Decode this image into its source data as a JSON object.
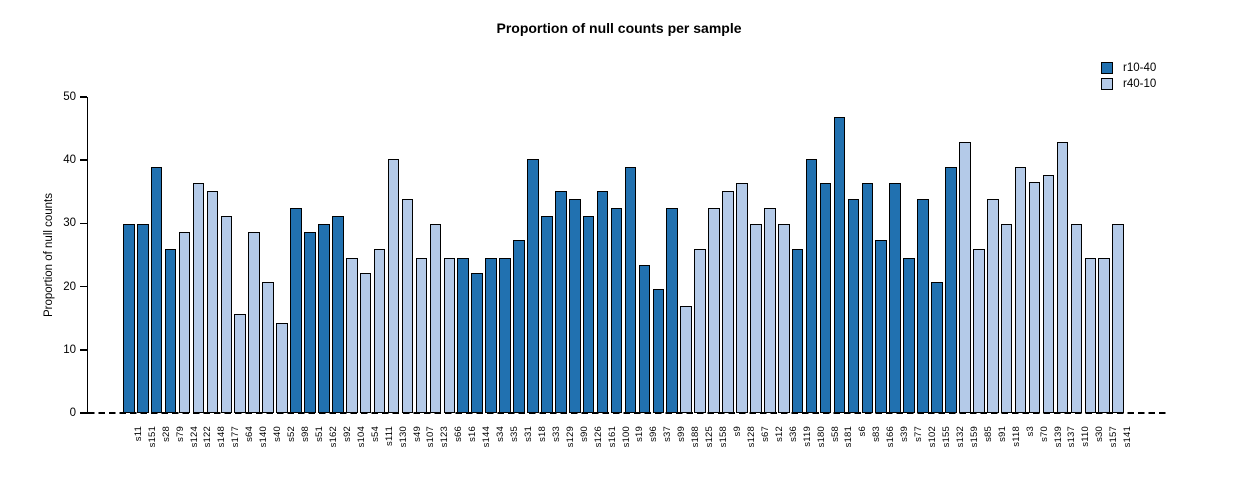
{
  "title": "Proportion of null counts per sample",
  "chart_data": {
    "type": "bar",
    "title": "Proportion of null counts per sample",
    "xlabel": "",
    "ylabel": "Proportion of null counts",
    "ylim": [
      0,
      50
    ],
    "yticks": [
      0,
      10,
      20,
      30,
      40,
      50
    ],
    "grid": false,
    "legend_position": "top-right",
    "baseline_style": "dashed-zero-line",
    "bar_border_color": "#000000",
    "series": [
      {
        "name": "r10-40",
        "color": "#2171b0"
      },
      {
        "name": "r40-10",
        "color": "#b4cae8"
      }
    ],
    "bars": [
      {
        "label": "s11",
        "value": 29.9,
        "series": "r10-40"
      },
      {
        "label": "s151",
        "value": 29.9,
        "series": "r10-40"
      },
      {
        "label": "s28",
        "value": 39.0,
        "series": "r10-40"
      },
      {
        "label": "s79",
        "value": 26.0,
        "series": "r10-40"
      },
      {
        "label": "s124",
        "value": 28.6,
        "series": "r40-10"
      },
      {
        "label": "s122",
        "value": 36.4,
        "series": "r40-10"
      },
      {
        "label": "s148",
        "value": 35.1,
        "series": "r40-10"
      },
      {
        "label": "s177",
        "value": 31.2,
        "series": "r40-10"
      },
      {
        "label": "s64",
        "value": 15.6,
        "series": "r40-10"
      },
      {
        "label": "s140",
        "value": 28.6,
        "series": "r40-10"
      },
      {
        "label": "s40",
        "value": 20.8,
        "series": "r40-10"
      },
      {
        "label": "s52",
        "value": 14.3,
        "series": "r40-10"
      },
      {
        "label": "s98",
        "value": 32.5,
        "series": "r10-40"
      },
      {
        "label": "s51",
        "value": 28.6,
        "series": "r10-40"
      },
      {
        "label": "s162",
        "value": 29.9,
        "series": "r10-40"
      },
      {
        "label": "s92",
        "value": 31.2,
        "series": "r10-40"
      },
      {
        "label": "s104",
        "value": 24.6,
        "series": "r40-10"
      },
      {
        "label": "s54",
        "value": 22.1,
        "series": "r40-10"
      },
      {
        "label": "s111",
        "value": 26.0,
        "series": "r40-10"
      },
      {
        "label": "s130",
        "value": 40.2,
        "series": "r40-10"
      },
      {
        "label": "s49",
        "value": 33.8,
        "series": "r40-10"
      },
      {
        "label": "s107",
        "value": 24.6,
        "series": "r40-10"
      },
      {
        "label": "s123",
        "value": 29.9,
        "series": "r40-10"
      },
      {
        "label": "s66",
        "value": 24.6,
        "series": "r40-10"
      },
      {
        "label": "s16",
        "value": 24.6,
        "series": "r10-40"
      },
      {
        "label": "s144",
        "value": 22.1,
        "series": "r10-40"
      },
      {
        "label": "s34",
        "value": 24.6,
        "series": "r10-40"
      },
      {
        "label": "s35",
        "value": 24.6,
        "series": "r10-40"
      },
      {
        "label": "s31",
        "value": 27.3,
        "series": "r10-40"
      },
      {
        "label": "s18",
        "value": 40.2,
        "series": "r10-40"
      },
      {
        "label": "s33",
        "value": 31.2,
        "series": "r10-40"
      },
      {
        "label": "s129",
        "value": 35.1,
        "series": "r10-40"
      },
      {
        "label": "s90",
        "value": 33.8,
        "series": "r10-40"
      },
      {
        "label": "s126",
        "value": 31.2,
        "series": "r10-40"
      },
      {
        "label": "s161",
        "value": 35.1,
        "series": "r10-40"
      },
      {
        "label": "s100",
        "value": 32.5,
        "series": "r10-40"
      },
      {
        "label": "s19",
        "value": 39.0,
        "series": "r10-40"
      },
      {
        "label": "s96",
        "value": 23.4,
        "series": "r10-40"
      },
      {
        "label": "s37",
        "value": 19.6,
        "series": "r10-40"
      },
      {
        "label": "s99",
        "value": 32.5,
        "series": "r10-40"
      },
      {
        "label": "s188",
        "value": 16.9,
        "series": "r40-10"
      },
      {
        "label": "s125",
        "value": 26.0,
        "series": "r40-10"
      },
      {
        "label": "s158",
        "value": 32.5,
        "series": "r40-10"
      },
      {
        "label": "s9",
        "value": 35.1,
        "series": "r40-10"
      },
      {
        "label": "s128",
        "value": 36.4,
        "series": "r40-10"
      },
      {
        "label": "s67",
        "value": 29.9,
        "series": "r40-10"
      },
      {
        "label": "s12",
        "value": 32.5,
        "series": "r40-10"
      },
      {
        "label": "s36",
        "value": 29.9,
        "series": "r40-10"
      },
      {
        "label": "s119",
        "value": 26.0,
        "series": "r10-40"
      },
      {
        "label": "s180",
        "value": 40.2,
        "series": "r10-40"
      },
      {
        "label": "s58",
        "value": 36.4,
        "series": "r10-40"
      },
      {
        "label": "s181",
        "value": 46.9,
        "series": "r10-40"
      },
      {
        "label": "s6",
        "value": 33.8,
        "series": "r10-40"
      },
      {
        "label": "s83",
        "value": 36.4,
        "series": "r10-40"
      },
      {
        "label": "s166",
        "value": 27.3,
        "series": "r10-40"
      },
      {
        "label": "s39",
        "value": 36.4,
        "series": "r10-40"
      },
      {
        "label": "s77",
        "value": 24.6,
        "series": "r10-40"
      },
      {
        "label": "s102",
        "value": 33.8,
        "series": "r10-40"
      },
      {
        "label": "s155",
        "value": 20.8,
        "series": "r10-40"
      },
      {
        "label": "s132",
        "value": 39.0,
        "series": "r10-40"
      },
      {
        "label": "s159",
        "value": 42.9,
        "series": "r40-10"
      },
      {
        "label": "s85",
        "value": 26.0,
        "series": "r40-10"
      },
      {
        "label": "s91",
        "value": 33.8,
        "series": "r40-10"
      },
      {
        "label": "s118",
        "value": 29.9,
        "series": "r40-10"
      },
      {
        "label": "s3",
        "value": 39.0,
        "series": "r40-10"
      },
      {
        "label": "s70",
        "value": 36.5,
        "series": "r40-10"
      },
      {
        "label": "s139",
        "value": 37.7,
        "series": "r40-10"
      },
      {
        "label": "s137",
        "value": 42.9,
        "series": "r40-10"
      },
      {
        "label": "s110",
        "value": 29.9,
        "series": "r40-10"
      },
      {
        "label": "s30",
        "value": 24.6,
        "series": "r40-10"
      },
      {
        "label": "s157",
        "value": 24.6,
        "series": "r40-10"
      },
      {
        "label": "s141",
        "value": 29.9,
        "series": "r40-10"
      }
    ]
  }
}
